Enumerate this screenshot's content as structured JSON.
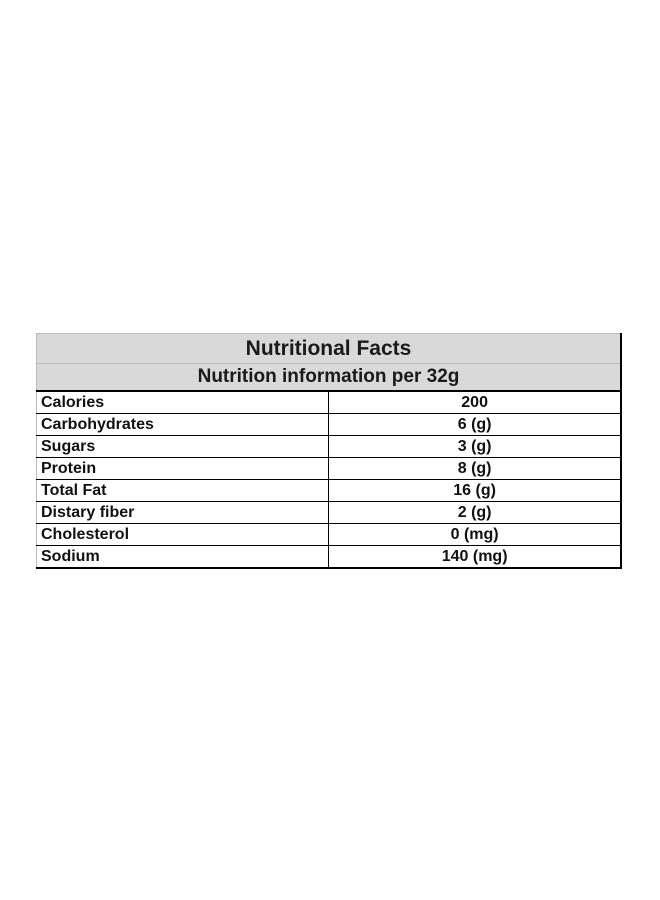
{
  "table": {
    "title": "Nutritional Facts",
    "subtitle": "Nutrition information per 32g",
    "rows": [
      {
        "nutrient": "Calories",
        "amount": "200"
      },
      {
        "nutrient": "Carbohydrates",
        "amount": "6 (g)"
      },
      {
        "nutrient": "Sugars",
        "amount": "3 (g)"
      },
      {
        "nutrient": "Protein",
        "amount": "8 (g)"
      },
      {
        "nutrient": "Total Fat",
        "amount": "16 (g)"
      },
      {
        "nutrient": "Distary fiber",
        "amount": "2 (g)"
      },
      {
        "nutrient": "Cholesterol",
        "amount": "0 (mg)"
      },
      {
        "nutrient": "Sodium",
        "amount": "140 (mg)"
      }
    ]
  },
  "colors": {
    "header_background": "#d9d9d9",
    "border": "#000000"
  }
}
